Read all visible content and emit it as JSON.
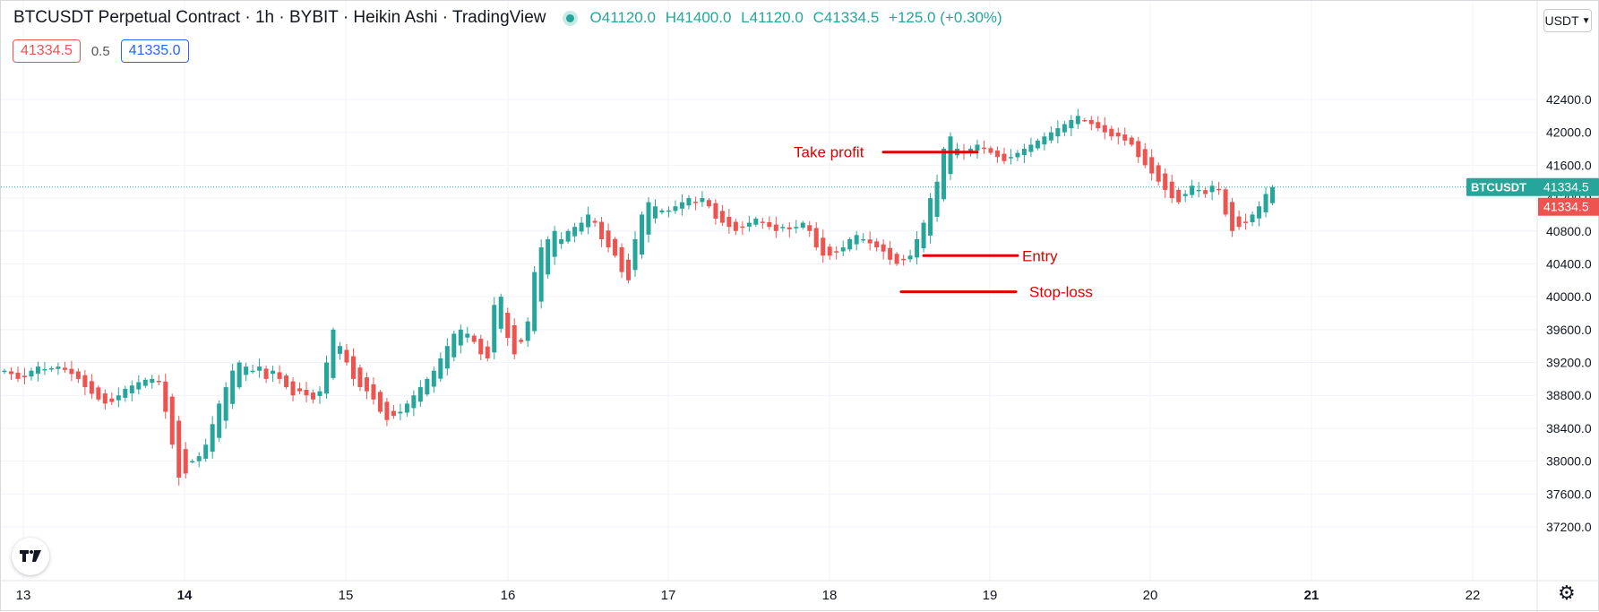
{
  "header": {
    "title": "BTCUSDT Perpetual Contract · 1h · BYBIT · Heikin Ashi · TradingView",
    "ohlc": {
      "o_label": "O",
      "o": "41120.0",
      "h_label": "H",
      "h": "41400.0",
      "l_label": "L",
      "l": "41120.0",
      "c_label": "C",
      "c": "41334.5",
      "change": "+125.0 (+0.30%)"
    },
    "sell_price": "41334.5",
    "spread": "0.5",
    "buy_price": "41335.0",
    "currency": "USDT"
  },
  "colors": {
    "up": "#26a69a",
    "down": "#ef5350",
    "annotation": "#e00000",
    "grid": "#f0f3fa"
  },
  "icons": {
    "logo": "tradingview-logo-icon",
    "settings": "gear-icon",
    "dropdown": "chevron-down-icon"
  },
  "chart_data": {
    "type": "candlestick",
    "symbol": "BTCUSDT",
    "y_ticks": [
      "42400.0",
      "42000.0",
      "41600.0",
      "41200.0",
      "40800.0",
      "40400.0",
      "40000.0",
      "39600.0",
      "39200.0",
      "38800.0",
      "38400.0",
      "38000.0",
      "37600.0",
      "37200.0"
    ],
    "ylim": [
      37000,
      42700
    ],
    "x_ticks": [
      "13",
      "14",
      "15",
      "16",
      "17",
      "18",
      "19",
      "20",
      "21",
      "22"
    ],
    "bold_x_ticks": [
      "14",
      "21"
    ],
    "last_price": 41334.5,
    "last_price_label_symbol": "BTCUSDT",
    "last_price_label_value": "41334.5",
    "red_price_label": "41334.5",
    "annotations": [
      {
        "text": "Take profit",
        "price": 41760
      },
      {
        "text": "Entry",
        "price": 40500
      },
      {
        "text": "Stop-loss",
        "price": 40060
      }
    ],
    "closes_hourly": [
      39100,
      39060,
      39000,
      39020,
      39100,
      39150,
      39120,
      39130,
      39150,
      39110,
      39060,
      39000,
      38900,
      38820,
      38750,
      38700,
      38720,
      38800,
      38880,
      38920,
      38960,
      38990,
      39000,
      38960,
      38600,
      38200,
      37800,
      37850,
      38000,
      38060,
      38200,
      38450,
      38700,
      38900,
      39100,
      39200,
      39150,
      39100,
      39150,
      39000,
      39100,
      39000,
      38900,
      38800,
      38850,
      38800,
      38750,
      38850,
      39200,
      39600,
      39400,
      39200,
      39000,
      38900,
      38850,
      38750,
      38600,
      38500,
      38550,
      38600,
      38700,
      38800,
      38900,
      39000,
      39100,
      39250,
      39400,
      39550,
      39600,
      39550,
      39450,
      39300,
      39250,
      39900,
      40000,
      39500,
      39300,
      39450,
      39700,
      40300,
      40600,
      40700,
      40800,
      40700,
      40800,
      40850,
      40900,
      41000,
      40900,
      40700,
      40600,
      40500,
      40300,
      40200,
      40700,
      41000,
      41150,
      41100,
      41050,
      41050,
      41100,
      41150,
      41200,
      41150,
      41200,
      41100,
      40950,
      40900,
      40850,
      40800,
      40850,
      40900,
      40950,
      40900,
      40850,
      40800,
      40850,
      40820,
      40850,
      40900,
      40800,
      40600,
      40500,
      40500,
      40550,
      40600,
      40700,
      40750,
      40700,
      40650,
      40600,
      40550,
      40450,
      40400,
      40450,
      40500,
      40700,
      40900,
      41200,
      41400,
      41800,
      41950,
      41800,
      41750,
      41800,
      41850,
      41800,
      41750,
      41700,
      41650,
      41700,
      41750,
      41800,
      41850,
      41900,
      41950,
      42000,
      42050,
      42100,
      42150,
      42200,
      42150,
      42100,
      42050,
      42000,
      41950,
      41950,
      41900,
      41850,
      41700,
      41600,
      41500,
      41400,
      41300,
      41200,
      41150,
      41250,
      41350,
      41300,
      41250,
      41350,
      41300,
      41000,
      40800,
      40850,
      40900,
      41000,
      41100,
      41250,
      41335
    ]
  }
}
